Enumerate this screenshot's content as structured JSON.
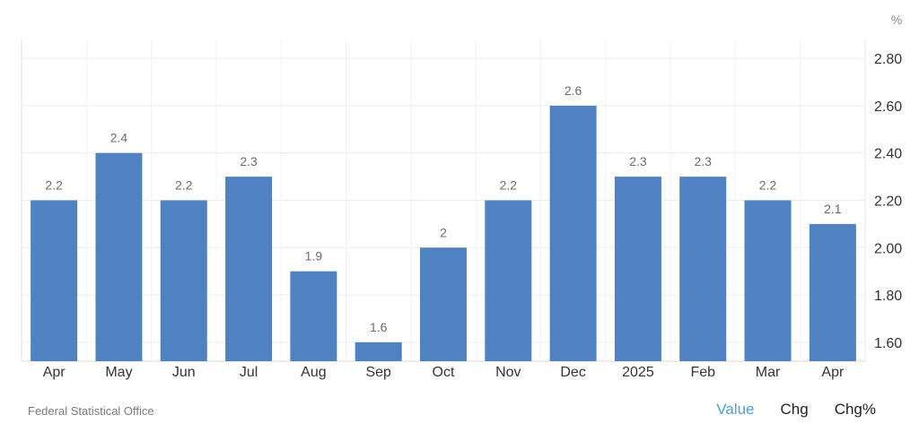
{
  "chart_data": {
    "type": "bar",
    "unit": "%",
    "categories": [
      "Apr",
      "May",
      "Jun",
      "Jul",
      "Aug",
      "Sep",
      "Oct",
      "Nov",
      "Dec",
      "2025",
      "Feb",
      "Mar",
      "Apr"
    ],
    "values": [
      2.2,
      2.4,
      2.2,
      2.3,
      1.9,
      1.6,
      2.0,
      2.2,
      2.6,
      2.3,
      2.3,
      2.2,
      2.1
    ],
    "value_labels": [
      "2.2",
      "2.4",
      "2.2",
      "2.3",
      "1.9",
      "1.6",
      "2",
      "2.2",
      "2.6",
      "2.3",
      "2.3",
      "2.2",
      "2.1"
    ],
    "y_ticks": [
      "1.60",
      "1.80",
      "2.00",
      "2.20",
      "2.40",
      "2.60",
      "2.80"
    ],
    "ylim": [
      1.52,
      2.88
    ],
    "grid": true,
    "bar_color": "#5082c2",
    "title": "",
    "xlabel": "",
    "ylabel": ""
  },
  "footer": {
    "source": "Federal Statistical Office",
    "toggles": [
      "Value",
      "Chg",
      "Chg%"
    ],
    "active_color": "#4b9ee0"
  }
}
